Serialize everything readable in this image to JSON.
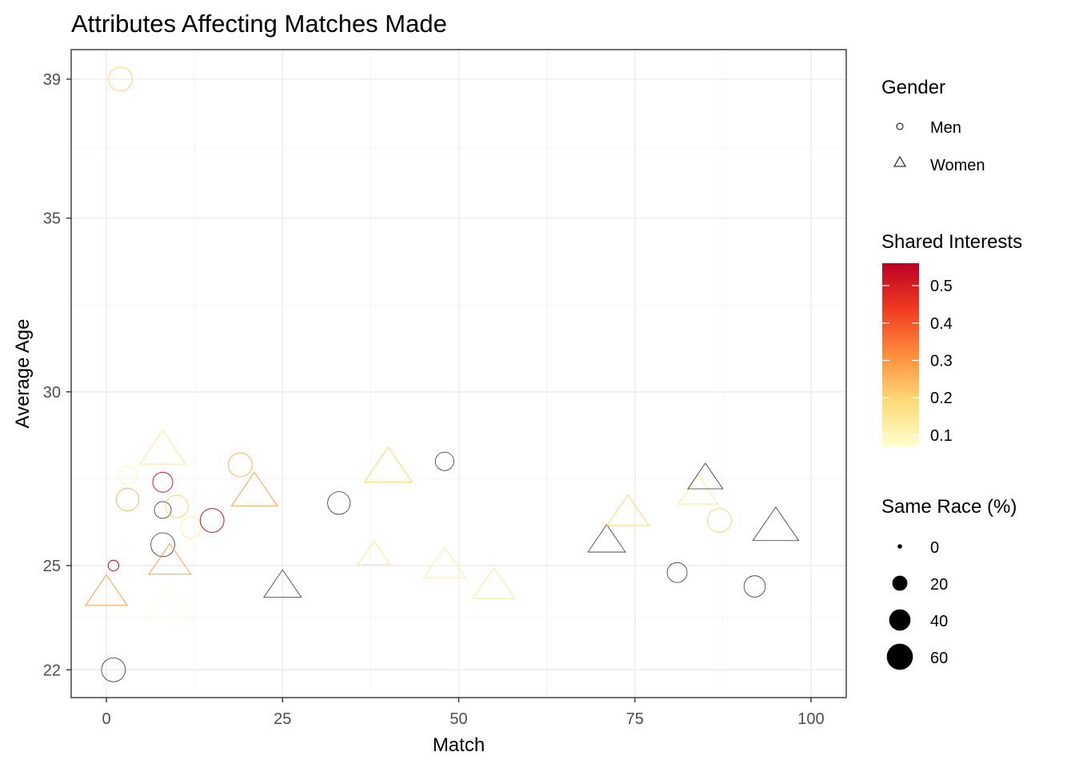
{
  "chart_data": {
    "type": "scatter",
    "title": "Attributes Affecting Matches Made",
    "xlabel": "Match",
    "ylabel": "Average Age",
    "xlim": [
      -5,
      105
    ],
    "ylim": [
      21.2,
      39.85
    ],
    "x_ticks": [
      0,
      25,
      50,
      75,
      100
    ],
    "y_ticks": [
      22,
      25,
      30,
      35,
      39
    ],
    "grid": true,
    "legend_placement": "right",
    "legend": {
      "shape": {
        "title": "Gender",
        "entries": [
          {
            "label": "Men",
            "shape": "circle"
          },
          {
            "label": "Women",
            "shape": "triangle"
          }
        ]
      },
      "color": {
        "title": "Shared Interests",
        "min": 0.07,
        "max": 0.56,
        "ticks": [
          0.1,
          0.2,
          0.3,
          0.4,
          0.5
        ],
        "tick_labels": [
          "0.1",
          "0.2",
          "0.3",
          "0.4",
          "0.5"
        ],
        "low_color": "#ffffcc",
        "high_color": "#bd0026",
        "na_color": "#333333"
      },
      "size": {
        "title": "Same Race (%)",
        "breaks": [
          0,
          20,
          40,
          60
        ],
        "labels": [
          "0",
          "20",
          "40",
          "60"
        ]
      }
    },
    "series": [
      {
        "name": "Men",
        "shape": "circle",
        "points": [
          {
            "x": 2,
            "y": 39,
            "interests": 0.2,
            "same_race": 50
          },
          {
            "x": 1,
            "y": 22,
            "interests": null,
            "same_race": 50
          },
          {
            "x": 1,
            "y": 25,
            "interests": 0.55,
            "same_race": 10
          },
          {
            "x": 3,
            "y": 27.6,
            "interests": 0.1,
            "same_race": 30
          },
          {
            "x": 3,
            "y": 26.9,
            "interests": 0.25,
            "same_race": 45
          },
          {
            "x": 8,
            "y": 27.4,
            "interests": 0.5,
            "same_race": 35
          },
          {
            "x": 8,
            "y": 26.6,
            "interests": null,
            "same_race": 25
          },
          {
            "x": 8,
            "y": 25.6,
            "interests": null,
            "same_race": 50
          },
          {
            "x": 10,
            "y": 26.7,
            "interests": 0.2,
            "same_race": 45
          },
          {
            "x": 12,
            "y": 26.1,
            "interests": 0.13,
            "same_race": 40
          },
          {
            "x": 15,
            "y": 26.3,
            "interests": 0.53,
            "same_race": 50
          },
          {
            "x": 19,
            "y": 27.9,
            "interests": 0.25,
            "same_race": 50
          },
          {
            "x": 33,
            "y": 26.8,
            "interests": null,
            "same_race": 45
          },
          {
            "x": 48,
            "y": 28,
            "interests": null,
            "same_race": 30
          },
          {
            "x": 81,
            "y": 24.8,
            "interests": null,
            "same_race": 35
          },
          {
            "x": 87,
            "y": 26.3,
            "interests": 0.2,
            "same_race": 50
          },
          {
            "x": 92,
            "y": 24.4,
            "interests": null,
            "same_race": 40
          }
        ]
      },
      {
        "name": "Women",
        "shape": "triangle",
        "points": [
          {
            "x": 0,
            "y": 24.2,
            "interests": 0.28,
            "same_race": 50
          },
          {
            "x": 8,
            "y": 28.3,
            "interests": 0.15,
            "same_race": 60
          },
          {
            "x": 9,
            "y": 25.1,
            "interests": 0.28,
            "same_race": 50
          },
          {
            "x": 9,
            "y": 23.8,
            "interests": 0.07,
            "same_race": 60
          },
          {
            "x": 21,
            "y": 27.1,
            "interests": 0.28,
            "same_race": 60
          },
          {
            "x": 25,
            "y": 24.4,
            "interests": null,
            "same_race": 40
          },
          {
            "x": 38,
            "y": 25.3,
            "interests": 0.15,
            "same_race": 30
          },
          {
            "x": 40,
            "y": 27.8,
            "interests": 0.2,
            "same_race": 65
          },
          {
            "x": 48,
            "y": 25,
            "interests": 0.13,
            "same_race": 50
          },
          {
            "x": 55,
            "y": 24.4,
            "interests": 0.15,
            "same_race": 50
          },
          {
            "x": 71,
            "y": 25.7,
            "interests": null,
            "same_race": 40
          },
          {
            "x": 74,
            "y": 26.5,
            "interests": 0.2,
            "same_race": 50
          },
          {
            "x": 84,
            "y": 27.1,
            "interests": 0.15,
            "same_race": 45
          },
          {
            "x": 85,
            "y": 27.5,
            "interests": null,
            "same_race": 35
          },
          {
            "x": 95,
            "y": 26.1,
            "interests": null,
            "same_race": 60
          }
        ]
      }
    ]
  }
}
